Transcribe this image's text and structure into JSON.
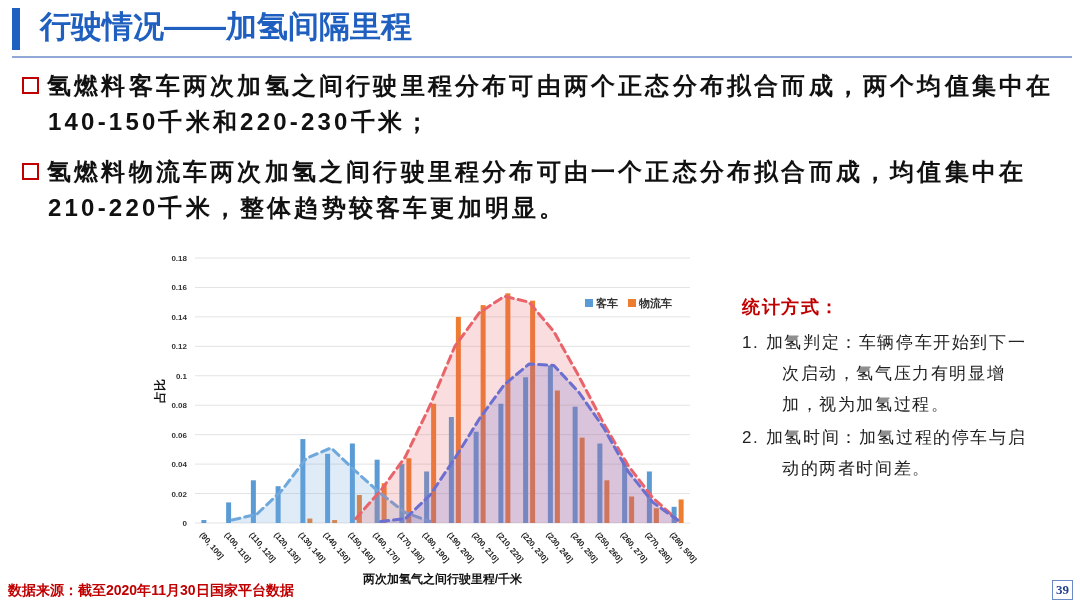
{
  "chart_data": {
    "type": "bar",
    "title": "行驶情况——加氢间隔里程",
    "ylabel": "占比",
    "xlabel": "两次加氢气之间行驶里程/千米",
    "categories": [
      "(90, 100]",
      "(100, 110]",
      "(110, 120]",
      "(120, 130]",
      "(130, 140]",
      "(140, 150]",
      "(150, 160]",
      "(160, 170]",
      "(170, 180]",
      "(180, 190]",
      "(190, 200]",
      "(200, 210]",
      "(210, 220]",
      "(220, 230]",
      "(230, 240]",
      "(240, 250]",
      "(250, 260]",
      "(260, 270]",
      "(270, 280]",
      "(280, 500]"
    ],
    "series": [
      {
        "name": "客车",
        "color": "#5b9bd5",
        "values": [
          0.002,
          0.014,
          0.029,
          0.025,
          0.057,
          0.047,
          0.054,
          0.043,
          0.04,
          0.035,
          0.072,
          0.062,
          0.081,
          0.099,
          0.107,
          0.079,
          0.054,
          0.043,
          0.035,
          0.011
        ]
      },
      {
        "name": "物流车",
        "color": "#ed7d31",
        "values": [
          0,
          0,
          0,
          0,
          0.003,
          0.002,
          0.019,
          0.027,
          0.044,
          0.081,
          0.14,
          0.148,
          0.156,
          0.151,
          0.09,
          0.058,
          0.029,
          0.018,
          0.01,
          0.016
        ]
      },
      {
        "type": "area",
        "line_style": "dashed",
        "color": "#6fa8dc",
        "values": [
          null,
          0.002,
          0.006,
          0.022,
          0.044,
          0.051,
          0.035,
          0.02,
          0.007,
          0.001,
          null,
          null,
          null,
          null,
          null,
          null,
          null,
          null,
          null,
          null
        ]
      },
      {
        "type": "area",
        "line_style": "dashed",
        "color": "#e8646a",
        "values": [
          null,
          null,
          null,
          null,
          null,
          null,
          0.003,
          0.022,
          0.045,
          0.08,
          0.12,
          0.143,
          0.154,
          0.15,
          0.13,
          0.1,
          0.068,
          0.039,
          0.017,
          0.002
        ]
      },
      {
        "type": "area",
        "line_style": "dashed",
        "color": "#6a6fd0",
        "values": [
          null,
          null,
          null,
          null,
          null,
          null,
          null,
          0.001,
          0.003,
          0.019,
          0.044,
          0.071,
          0.094,
          0.108,
          0.107,
          0.089,
          0.065,
          0.035,
          0.014,
          0.002
        ]
      }
    ],
    "ylim": [
      0,
      0.18
    ],
    "yticks": [
      0,
      0.02,
      0.04,
      0.06,
      0.08,
      0.1,
      0.12,
      0.14,
      0.16,
      0.18
    ],
    "grid": "y",
    "legend": "top right",
    "annotations": [
      "氢燃料客车两次加氢之间行驶里程分布可由两个正态分布拟合而成，两个均值集中在140-150千米和220-230千米；",
      "氢燃料物流车两次加氢之间行驶里程分布可由一个正态分布拟合而成，均值集中在210-220千米，整体趋势较客车更加明显。",
      "统计方式：",
      "1. 加氢判定：车辆停车开始到下一次启动，氢气压力有明显增加，视为加氢过程。",
      "2. 加氢时间：加氢过程的停车与启动的两者时间差。",
      "数据来源：截至2020年11月30日国家平台数据",
      "39"
    ]
  }
}
